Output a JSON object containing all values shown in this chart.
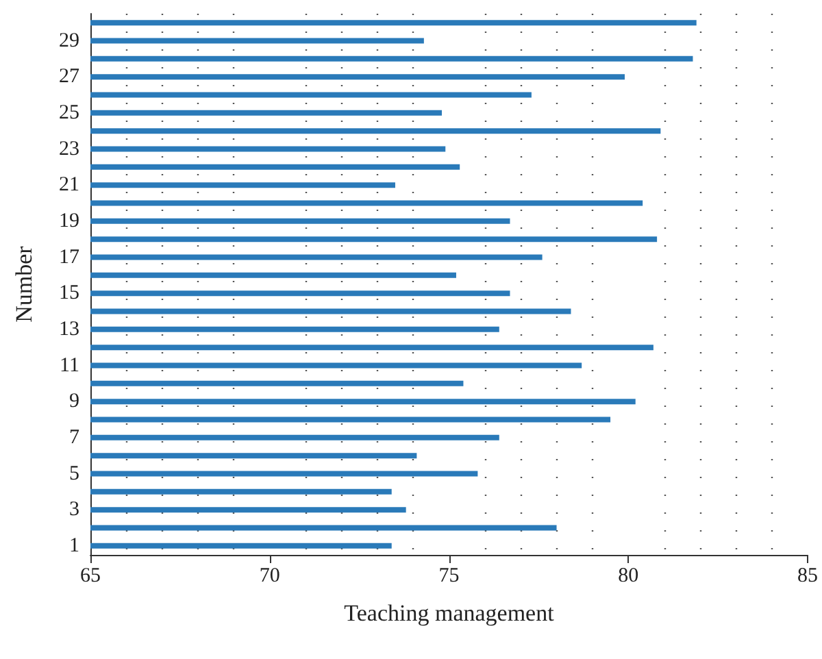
{
  "chart_data": {
    "type": "bar",
    "orientation": "horizontal",
    "xlabel": "Teaching management",
    "ylabel": "Number",
    "categories": [
      null,
      "29",
      null,
      "27",
      null,
      "25",
      null,
      "23",
      null,
      "21",
      null,
      "19",
      null,
      "17",
      null,
      "15",
      null,
      "13",
      null,
      "11",
      null,
      "9",
      null,
      "7",
      null,
      "5",
      null,
      "3",
      null,
      "1"
    ],
    "values": [
      81.9,
      74.3,
      81.8,
      79.9,
      77.3,
      74.8,
      80.9,
      74.9,
      75.3,
      73.5,
      80.4,
      76.7,
      80.8,
      77.6,
      75.2,
      76.7,
      78.4,
      76.4,
      80.7,
      78.7,
      75.4,
      80.2,
      79.5,
      76.4,
      74.1,
      75.8,
      73.4,
      73.8,
      78.0,
      73.4
    ],
    "color": "#2a7ab9",
    "xlim": [
      65,
      85
    ],
    "xticks": [
      65,
      70,
      75,
      80,
      85
    ],
    "grid": "x"
  }
}
